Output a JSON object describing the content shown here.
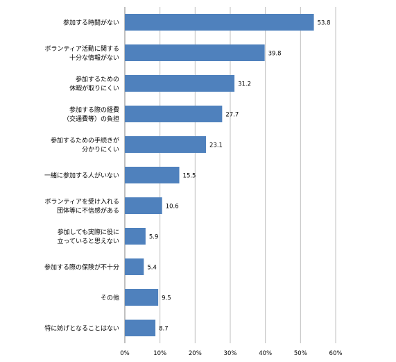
{
  "chart_data": {
    "type": "bar",
    "orientation": "horizontal",
    "categories": [
      [
        "参加する時間がない"
      ],
      [
        "ボランティア活動に関する",
        "十分な情報がない"
      ],
      [
        "参加するための",
        "休暇が取りにくい"
      ],
      [
        "参加する際の経費",
        "（交通費等）の負担"
      ],
      [
        "参加するための手続きが",
        "分かりにくい"
      ],
      [
        "一緒に参加する人がいない"
      ],
      [
        "ボランティアを受け入れる",
        "団体等に不信感がある"
      ],
      [
        "参加しても実際に役に",
        "立っていると思えない"
      ],
      [
        "参加する際の保険が不十分"
      ],
      [
        "その他"
      ],
      [
        "特に妨げとなることはない"
      ]
    ],
    "values": [
      53.8,
      39.8,
      31.2,
      27.7,
      23.1,
      15.5,
      10.6,
      5.9,
      5.4,
      9.5,
      8.7
    ],
    "value_labels": [
      "53.8",
      "39.8",
      "31.2",
      "27.7",
      "23.1",
      "15.5",
      "10.6",
      "5.9",
      "5.4",
      "9.5",
      "8.7"
    ],
    "xlim": [
      0,
      60
    ],
    "x_ticks": [
      "0%",
      "10%",
      "20%",
      "30%",
      "40%",
      "50%",
      "60%"
    ],
    "grid": true,
    "bar_color": "#4F81BD",
    "title": "",
    "xlabel": "",
    "ylabel": ""
  }
}
